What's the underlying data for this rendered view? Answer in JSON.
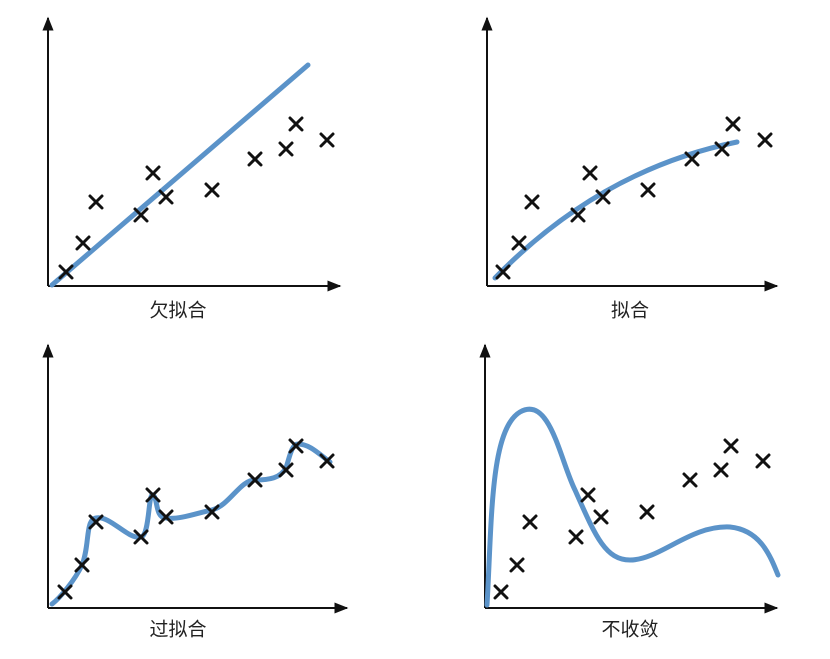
{
  "panels": [
    {
      "caption": "欠拟合"
    },
    {
      "caption": "拟合"
    },
    {
      "caption": "过拟合"
    },
    {
      "caption": "不收敛"
    }
  ]
}
